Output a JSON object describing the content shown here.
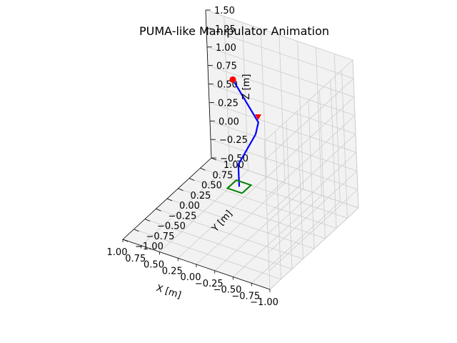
{
  "chart_data": {
    "type": "line3d",
    "title": "PUMA-like Manipulator Animation",
    "xlabel": "X [m]",
    "ylabel": "Y [m]",
    "zlabel": "Z [m]",
    "xlim": [
      -1.0,
      1.0
    ],
    "ylim": [
      -1.0,
      1.0
    ],
    "zlim": [
      -0.5,
      1.5
    ],
    "x_ticks": [
      "−1.00",
      "−0.75",
      "−0.50",
      "−0.25",
      "0.00",
      "0.25",
      "0.50",
      "0.75",
      "1.00"
    ],
    "y_ticks": [
      "−1.00",
      "−0.75",
      "−0.50",
      "−0.25",
      "0.00",
      "0.25",
      "0.50",
      "0.75",
      "1.00"
    ],
    "z_ticks": [
      "−0.50",
      "−0.25",
      "0.00",
      "0.25",
      "0.50",
      "0.75",
      "1.00",
      "1.25",
      "1.50"
    ],
    "grid": true,
    "series": [
      {
        "kind": "arm",
        "color": "#0000ff",
        "points": [
          [
            0.0,
            0.0,
            0.0
          ],
          [
            0.0,
            0.0,
            0.3
          ],
          [
            0.03,
            0.45,
            0.45
          ],
          [
            0.05,
            0.55,
            0.55
          ],
          [
            0.6,
            0.9,
            0.75
          ]
        ]
      },
      {
        "kind": "base",
        "color": "#008000",
        "points": [
          [
            -0.1,
            -0.1,
            0.0
          ],
          [
            0.1,
            -0.1,
            0.0
          ],
          [
            0.1,
            0.1,
            0.0
          ],
          [
            -0.1,
            0.1,
            0.0
          ],
          [
            -0.1,
            -0.1,
            0.0
          ]
        ]
      },
      {
        "kind": "end-effector",
        "color": "#ff0000",
        "marker": "circle",
        "points": [
          [
            0.6,
            0.9,
            0.75
          ]
        ]
      },
      {
        "kind": "wrist",
        "color": "#ff0000",
        "marker": "triangle-down",
        "points": [
          [
            0.05,
            0.55,
            0.62
          ]
        ]
      }
    ],
    "pane_color": "#f2f2f2",
    "grid_color": "#cccccc"
  }
}
